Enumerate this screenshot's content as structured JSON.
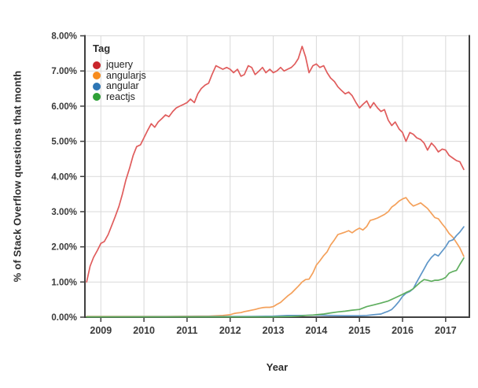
{
  "legend": {
    "title": "Tag"
  },
  "chart_data": {
    "type": "line",
    "title": "",
    "xlabel": "Year",
    "ylabel": "% of Stack Overflow questions that month",
    "xlim": [
      2008.63,
      2017.55
    ],
    "ylim": [
      0,
      8
    ],
    "x_ticks": [
      2009,
      2010,
      2011,
      2012,
      2013,
      2014,
      2015,
      2016,
      2017
    ],
    "y_tick_values": [
      0,
      1,
      2,
      3,
      4,
      5,
      6,
      7,
      8
    ],
    "y_tick_labels": [
      "0.00%",
      "1.00%",
      "2.00%",
      "3.00%",
      "4.00%",
      "5.00%",
      "6.00%",
      "7.00%",
      "8.00%"
    ],
    "grid": true,
    "legend_position": "top-left-inside",
    "style": {
      "grid_color": "#d9d9d9",
      "spine_color": "#3f3f3f",
      "tick_label_color": "#3a3a3a",
      "background": "#ffffff"
    },
    "series": [
      {
        "name": "jquery",
        "dot_color": "#c9252b",
        "line_color": "#e05c5c",
        "points": [
          [
            2008.67,
            1.0
          ],
          [
            2008.75,
            1.45
          ],
          [
            2008.83,
            1.7
          ],
          [
            2008.92,
            1.9
          ],
          [
            2009.0,
            2.1
          ],
          [
            2009.08,
            2.15
          ],
          [
            2009.17,
            2.35
          ],
          [
            2009.25,
            2.6
          ],
          [
            2009.33,
            2.85
          ],
          [
            2009.42,
            3.15
          ],
          [
            2009.5,
            3.5
          ],
          [
            2009.58,
            3.9
          ],
          [
            2009.67,
            4.25
          ],
          [
            2009.75,
            4.6
          ],
          [
            2009.83,
            4.85
          ],
          [
            2009.92,
            4.9
          ],
          [
            2010.0,
            5.1
          ],
          [
            2010.08,
            5.3
          ],
          [
            2010.17,
            5.5
          ],
          [
            2010.25,
            5.4
          ],
          [
            2010.33,
            5.55
          ],
          [
            2010.42,
            5.65
          ],
          [
            2010.5,
            5.75
          ],
          [
            2010.58,
            5.7
          ],
          [
            2010.67,
            5.85
          ],
          [
            2010.75,
            5.95
          ],
          [
            2010.83,
            6.0
          ],
          [
            2010.92,
            6.05
          ],
          [
            2011.0,
            6.1
          ],
          [
            2011.08,
            6.2
          ],
          [
            2011.17,
            6.1
          ],
          [
            2011.25,
            6.35
          ],
          [
            2011.33,
            6.5
          ],
          [
            2011.42,
            6.6
          ],
          [
            2011.5,
            6.65
          ],
          [
            2011.58,
            6.9
          ],
          [
            2011.67,
            7.15
          ],
          [
            2011.75,
            7.1
          ],
          [
            2011.83,
            7.05
          ],
          [
            2011.92,
            7.1
          ],
          [
            2012.0,
            7.05
          ],
          [
            2012.08,
            6.95
          ],
          [
            2012.17,
            7.05
          ],
          [
            2012.25,
            6.85
          ],
          [
            2012.33,
            6.9
          ],
          [
            2012.42,
            7.15
          ],
          [
            2012.5,
            7.1
          ],
          [
            2012.58,
            6.9
          ],
          [
            2012.67,
            7.0
          ],
          [
            2012.75,
            7.1
          ],
          [
            2012.83,
            6.95
          ],
          [
            2012.92,
            7.05
          ],
          [
            2013.0,
            6.95
          ],
          [
            2013.08,
            7.0
          ],
          [
            2013.17,
            7.1
          ],
          [
            2013.25,
            7.0
          ],
          [
            2013.33,
            7.05
          ],
          [
            2013.42,
            7.1
          ],
          [
            2013.5,
            7.2
          ],
          [
            2013.58,
            7.35
          ],
          [
            2013.67,
            7.7
          ],
          [
            2013.75,
            7.4
          ],
          [
            2013.83,
            6.95
          ],
          [
            2013.92,
            7.15
          ],
          [
            2014.0,
            7.2
          ],
          [
            2014.08,
            7.1
          ],
          [
            2014.17,
            7.15
          ],
          [
            2014.25,
            6.95
          ],
          [
            2014.33,
            6.8
          ],
          [
            2014.42,
            6.7
          ],
          [
            2014.5,
            6.55
          ],
          [
            2014.58,
            6.45
          ],
          [
            2014.67,
            6.35
          ],
          [
            2014.75,
            6.4
          ],
          [
            2014.83,
            6.3
          ],
          [
            2014.92,
            6.1
          ],
          [
            2015.0,
            5.95
          ],
          [
            2015.08,
            6.05
          ],
          [
            2015.17,
            6.15
          ],
          [
            2015.25,
            5.95
          ],
          [
            2015.33,
            6.1
          ],
          [
            2015.42,
            5.95
          ],
          [
            2015.5,
            5.85
          ],
          [
            2015.58,
            5.9
          ],
          [
            2015.67,
            5.6
          ],
          [
            2015.75,
            5.45
          ],
          [
            2015.83,
            5.55
          ],
          [
            2015.92,
            5.35
          ],
          [
            2016.0,
            5.25
          ],
          [
            2016.08,
            5.0
          ],
          [
            2016.17,
            5.25
          ],
          [
            2016.25,
            5.2
          ],
          [
            2016.33,
            5.1
          ],
          [
            2016.42,
            5.05
          ],
          [
            2016.5,
            4.95
          ],
          [
            2016.58,
            4.75
          ],
          [
            2016.67,
            4.95
          ],
          [
            2016.75,
            4.85
          ],
          [
            2016.83,
            4.7
          ],
          [
            2016.92,
            4.78
          ],
          [
            2017.0,
            4.75
          ],
          [
            2017.08,
            4.6
          ],
          [
            2017.17,
            4.52
          ],
          [
            2017.25,
            4.45
          ],
          [
            2017.33,
            4.42
          ],
          [
            2017.42,
            4.2
          ]
        ]
      },
      {
        "name": "angularjs",
        "dot_color": "#f78c1e",
        "line_color": "#f4a05a",
        "points": [
          [
            2008.67,
            0.02
          ],
          [
            2010.5,
            0.02
          ],
          [
            2011.5,
            0.03
          ],
          [
            2011.83,
            0.05
          ],
          [
            2012.0,
            0.07
          ],
          [
            2012.08,
            0.1
          ],
          [
            2012.17,
            0.12
          ],
          [
            2012.25,
            0.13
          ],
          [
            2012.33,
            0.16
          ],
          [
            2012.42,
            0.18
          ],
          [
            2012.5,
            0.2
          ],
          [
            2012.58,
            0.22
          ],
          [
            2012.67,
            0.25
          ],
          [
            2012.75,
            0.27
          ],
          [
            2012.83,
            0.28
          ],
          [
            2012.92,
            0.28
          ],
          [
            2013.0,
            0.3
          ],
          [
            2013.08,
            0.36
          ],
          [
            2013.17,
            0.42
          ],
          [
            2013.25,
            0.51
          ],
          [
            2013.33,
            0.6
          ],
          [
            2013.42,
            0.68
          ],
          [
            2013.5,
            0.78
          ],
          [
            2013.58,
            0.88
          ],
          [
            2013.67,
            1.0
          ],
          [
            2013.75,
            1.07
          ],
          [
            2013.83,
            1.08
          ],
          [
            2013.92,
            1.26
          ],
          [
            2014.0,
            1.48
          ],
          [
            2014.08,
            1.6
          ],
          [
            2014.17,
            1.75
          ],
          [
            2014.25,
            1.86
          ],
          [
            2014.33,
            2.05
          ],
          [
            2014.42,
            2.2
          ],
          [
            2014.5,
            2.35
          ],
          [
            2014.58,
            2.38
          ],
          [
            2014.67,
            2.42
          ],
          [
            2014.75,
            2.46
          ],
          [
            2014.83,
            2.4
          ],
          [
            2014.92,
            2.48
          ],
          [
            2015.0,
            2.53
          ],
          [
            2015.08,
            2.48
          ],
          [
            2015.17,
            2.58
          ],
          [
            2015.25,
            2.75
          ],
          [
            2015.33,
            2.78
          ],
          [
            2015.42,
            2.82
          ],
          [
            2015.5,
            2.87
          ],
          [
            2015.58,
            2.92
          ],
          [
            2015.67,
            3.0
          ],
          [
            2015.75,
            3.13
          ],
          [
            2015.83,
            3.2
          ],
          [
            2015.92,
            3.3
          ],
          [
            2016.0,
            3.36
          ],
          [
            2016.08,
            3.4
          ],
          [
            2016.17,
            3.25
          ],
          [
            2016.25,
            3.16
          ],
          [
            2016.33,
            3.2
          ],
          [
            2016.42,
            3.25
          ],
          [
            2016.5,
            3.17
          ],
          [
            2016.58,
            3.09
          ],
          [
            2016.67,
            2.95
          ],
          [
            2016.75,
            2.83
          ],
          [
            2016.83,
            2.8
          ],
          [
            2016.92,
            2.65
          ],
          [
            2017.0,
            2.53
          ],
          [
            2017.08,
            2.38
          ],
          [
            2017.17,
            2.27
          ],
          [
            2017.25,
            2.12
          ],
          [
            2017.33,
            1.97
          ],
          [
            2017.42,
            1.73
          ]
        ]
      },
      {
        "name": "angular",
        "dot_color": "#2e76b5",
        "line_color": "#5e96c8",
        "points": [
          [
            2008.67,
            0.01
          ],
          [
            2012.5,
            0.02
          ],
          [
            2013.0,
            0.03
          ],
          [
            2013.33,
            0.05
          ],
          [
            2013.67,
            0.05
          ],
          [
            2014.0,
            0.06
          ],
          [
            2014.33,
            0.05
          ],
          [
            2014.67,
            0.04
          ],
          [
            2015.0,
            0.04
          ],
          [
            2015.17,
            0.05
          ],
          [
            2015.33,
            0.07
          ],
          [
            2015.5,
            0.09
          ],
          [
            2015.58,
            0.13
          ],
          [
            2015.67,
            0.17
          ],
          [
            2015.75,
            0.22
          ],
          [
            2015.83,
            0.32
          ],
          [
            2015.92,
            0.45
          ],
          [
            2016.0,
            0.59
          ],
          [
            2016.08,
            0.68
          ],
          [
            2016.17,
            0.73
          ],
          [
            2016.25,
            0.81
          ],
          [
            2016.33,
            1.0
          ],
          [
            2016.42,
            1.2
          ],
          [
            2016.5,
            1.37
          ],
          [
            2016.58,
            1.55
          ],
          [
            2016.67,
            1.7
          ],
          [
            2016.75,
            1.79
          ],
          [
            2016.83,
            1.74
          ],
          [
            2016.92,
            1.88
          ],
          [
            2017.0,
            2.0
          ],
          [
            2017.08,
            2.16
          ],
          [
            2017.17,
            2.2
          ],
          [
            2017.25,
            2.32
          ],
          [
            2017.33,
            2.42
          ],
          [
            2017.42,
            2.57
          ]
        ]
      },
      {
        "name": "reactjs",
        "dot_color": "#2fa138",
        "line_color": "#5fae5f",
        "points": [
          [
            2008.67,
            0.01
          ],
          [
            2013.0,
            0.01
          ],
          [
            2013.42,
            0.02
          ],
          [
            2013.58,
            0.03
          ],
          [
            2013.75,
            0.05
          ],
          [
            2013.92,
            0.06
          ],
          [
            2014.0,
            0.07
          ],
          [
            2014.17,
            0.09
          ],
          [
            2014.33,
            0.12
          ],
          [
            2014.5,
            0.15
          ],
          [
            2014.67,
            0.17
          ],
          [
            2014.83,
            0.2
          ],
          [
            2015.0,
            0.22
          ],
          [
            2015.17,
            0.3
          ],
          [
            2015.33,
            0.35
          ],
          [
            2015.5,
            0.4
          ],
          [
            2015.67,
            0.46
          ],
          [
            2015.83,
            0.55
          ],
          [
            2016.0,
            0.65
          ],
          [
            2016.08,
            0.7
          ],
          [
            2016.17,
            0.75
          ],
          [
            2016.25,
            0.81
          ],
          [
            2016.33,
            0.9
          ],
          [
            2016.42,
            1.0
          ],
          [
            2016.5,
            1.07
          ],
          [
            2016.58,
            1.05
          ],
          [
            2016.67,
            1.02
          ],
          [
            2016.75,
            1.05
          ],
          [
            2016.83,
            1.05
          ],
          [
            2016.92,
            1.08
          ],
          [
            2017.0,
            1.13
          ],
          [
            2017.08,
            1.25
          ],
          [
            2017.17,
            1.3
          ],
          [
            2017.25,
            1.33
          ],
          [
            2017.33,
            1.5
          ],
          [
            2017.42,
            1.68
          ]
        ]
      }
    ]
  }
}
